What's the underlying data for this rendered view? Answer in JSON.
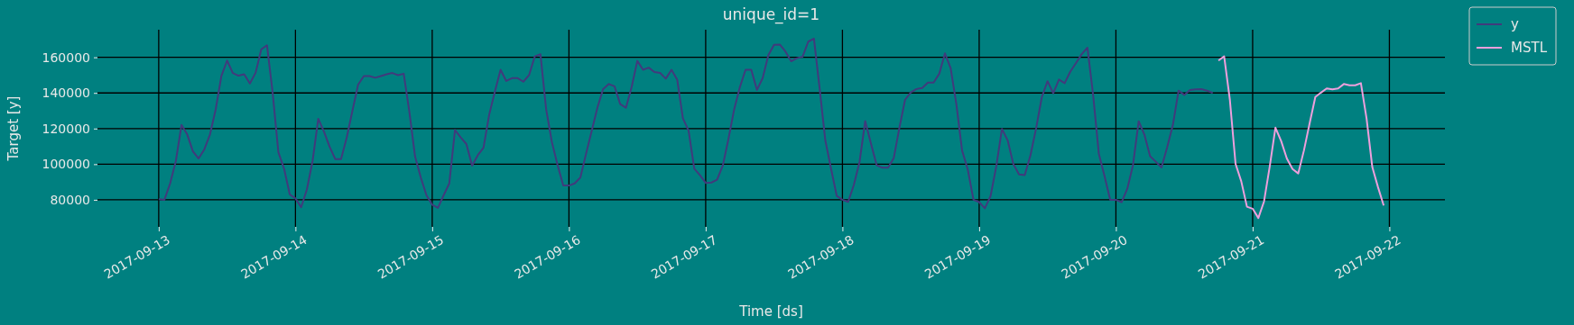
{
  "chart_data": {
    "type": "line",
    "title": "unique_id=1",
    "xlabel": "Time [ds]",
    "ylabel": "Target [y]",
    "xlim": [
      "2017-09-12T13:15",
      "2017-09-22T09:45"
    ],
    "xticks": [
      "2017-09-13",
      "2017-09-14",
      "2017-09-15",
      "2017-09-16",
      "2017-09-17",
      "2017-09-18",
      "2017-09-19",
      "2017-09-20",
      "2017-09-21",
      "2017-09-22"
    ],
    "ylim": [
      64800,
      175500
    ],
    "yticks": [
      80000,
      100000,
      120000,
      140000,
      160000
    ],
    "grid": true,
    "legend": "top right",
    "series": [
      {
        "name": "y",
        "color": "#413a7c",
        "x": [
          "2017-09-13T00:00",
          "2017-09-13T01:00",
          "2017-09-13T02:00",
          "2017-09-13T03:00",
          "2017-09-13T04:00",
          "2017-09-13T05:00",
          "2017-09-13T06:00",
          "2017-09-13T07:00",
          "2017-09-13T08:00",
          "2017-09-13T09:00",
          "2017-09-13T10:00",
          "2017-09-13T11:00",
          "2017-09-13T12:00",
          "2017-09-13T13:00",
          "2017-09-13T14:00",
          "2017-09-13T15:00",
          "2017-09-13T16:00",
          "2017-09-13T17:00",
          "2017-09-13T18:00",
          "2017-09-13T19:00",
          "2017-09-13T20:00",
          "2017-09-13T21:00",
          "2017-09-13T22:00",
          "2017-09-13T23:00",
          "2017-09-14T00:00",
          "2017-09-14T01:00",
          "2017-09-14T02:00",
          "2017-09-14T03:00",
          "2017-09-14T04:00",
          "2017-09-14T05:00",
          "2017-09-14T06:00",
          "2017-09-14T07:00",
          "2017-09-14T08:00",
          "2017-09-14T09:00",
          "2017-09-14T10:00",
          "2017-09-14T11:00",
          "2017-09-14T12:00",
          "2017-09-14T13:00",
          "2017-09-14T14:00",
          "2017-09-14T15:00",
          "2017-09-14T16:00",
          "2017-09-14T17:00",
          "2017-09-14T18:00",
          "2017-09-14T19:00",
          "2017-09-14T20:00",
          "2017-09-14T21:00",
          "2017-09-14T22:00",
          "2017-09-14T23:00",
          "2017-09-15T00:00",
          "2017-09-15T01:00",
          "2017-09-15T02:00",
          "2017-09-15T03:00",
          "2017-09-15T04:00",
          "2017-09-15T05:00",
          "2017-09-15T06:00",
          "2017-09-15T07:00",
          "2017-09-15T08:00",
          "2017-09-15T09:00",
          "2017-09-15T10:00",
          "2017-09-15T11:00",
          "2017-09-15T12:00",
          "2017-09-15T13:00",
          "2017-09-15T14:00",
          "2017-09-15T15:00",
          "2017-09-15T16:00",
          "2017-09-15T17:00",
          "2017-09-15T18:00",
          "2017-09-15T19:00",
          "2017-09-15T20:00",
          "2017-09-15T21:00",
          "2017-09-15T22:00",
          "2017-09-15T23:00",
          "2017-09-16T00:00",
          "2017-09-16T01:00",
          "2017-09-16T02:00",
          "2017-09-16T03:00",
          "2017-09-16T04:00",
          "2017-09-16T05:00",
          "2017-09-16T06:00",
          "2017-09-16T07:00",
          "2017-09-16T08:00",
          "2017-09-16T09:00",
          "2017-09-16T10:00",
          "2017-09-16T11:00",
          "2017-09-16T12:00",
          "2017-09-16T13:00",
          "2017-09-16T14:00",
          "2017-09-16T15:00",
          "2017-09-16T16:00",
          "2017-09-16T17:00",
          "2017-09-16T18:00",
          "2017-09-16T19:00",
          "2017-09-16T20:00",
          "2017-09-16T21:00",
          "2017-09-16T22:00",
          "2017-09-16T23:00",
          "2017-09-17T00:00",
          "2017-09-17T01:00",
          "2017-09-17T02:00",
          "2017-09-17T03:00",
          "2017-09-17T04:00",
          "2017-09-17T05:00",
          "2017-09-17T06:00",
          "2017-09-17T07:00",
          "2017-09-17T08:00",
          "2017-09-17T09:00",
          "2017-09-17T10:00",
          "2017-09-17T11:00",
          "2017-09-17T12:00",
          "2017-09-17T13:00",
          "2017-09-17T14:00",
          "2017-09-17T15:00",
          "2017-09-17T16:00",
          "2017-09-17T17:00",
          "2017-09-17T18:00",
          "2017-09-17T19:00",
          "2017-09-17T20:00",
          "2017-09-17T21:00",
          "2017-09-17T22:00",
          "2017-09-17T23:00",
          "2017-09-18T00:00",
          "2017-09-18T01:00",
          "2017-09-18T02:00",
          "2017-09-18T03:00",
          "2017-09-18T04:00",
          "2017-09-18T05:00",
          "2017-09-18T06:00",
          "2017-09-18T07:00",
          "2017-09-18T08:00",
          "2017-09-18T09:00",
          "2017-09-18T10:00",
          "2017-09-18T11:00",
          "2017-09-18T12:00",
          "2017-09-18T13:00",
          "2017-09-18T14:00",
          "2017-09-18T15:00",
          "2017-09-18T16:00",
          "2017-09-18T17:00",
          "2017-09-18T18:00",
          "2017-09-18T19:00",
          "2017-09-18T20:00",
          "2017-09-18T21:00",
          "2017-09-18T22:00",
          "2017-09-18T23:00",
          "2017-09-19T00:00",
          "2017-09-19T01:00",
          "2017-09-19T02:00",
          "2017-09-19T03:00",
          "2017-09-19T04:00",
          "2017-09-19T05:00",
          "2017-09-19T06:00",
          "2017-09-19T07:00",
          "2017-09-19T08:00",
          "2017-09-19T09:00",
          "2017-09-19T10:00",
          "2017-09-19T11:00",
          "2017-09-19T12:00",
          "2017-09-19T13:00",
          "2017-09-19T14:00",
          "2017-09-19T15:00",
          "2017-09-19T16:00",
          "2017-09-19T17:00",
          "2017-09-19T18:00",
          "2017-09-19T19:00",
          "2017-09-19T20:00",
          "2017-09-19T21:00",
          "2017-09-19T22:00",
          "2017-09-19T23:00",
          "2017-09-20T00:00",
          "2017-09-20T01:00",
          "2017-09-20T02:00",
          "2017-09-20T03:00",
          "2017-09-20T04:00",
          "2017-09-20T05:00",
          "2017-09-20T06:00",
          "2017-09-20T07:00",
          "2017-09-20T08:00",
          "2017-09-20T09:00",
          "2017-09-20T10:00",
          "2017-09-20T11:00",
          "2017-09-20T12:00",
          "2017-09-20T13:00",
          "2017-09-20T14:00",
          "2017-09-20T15:00",
          "2017-09-20T16:00",
          "2017-09-20T17:00"
        ],
        "values": [
          80300,
          80000,
          89200,
          101700,
          122000,
          116700,
          107200,
          103200,
          108300,
          116700,
          130800,
          149500,
          158200,
          151200,
          149700,
          150500,
          145300,
          151300,
          164500,
          166800,
          140000,
          106700,
          97500,
          83000,
          80800,
          75800,
          85800,
          101700,
          125500,
          118300,
          109700,
          102800,
          102800,
          115000,
          130000,
          144700,
          149500,
          149500,
          148500,
          149500,
          150500,
          151200,
          150000,
          150800,
          129200,
          104200,
          92500,
          82500,
          77200,
          75500,
          82500,
          89200,
          119200,
          115000,
          111300,
          99200,
          105000,
          109200,
          127800,
          140800,
          153000,
          146700,
          148300,
          148300,
          146300,
          150000,
          160500,
          161700,
          130800,
          112500,
          99500,
          88000,
          88000,
          89200,
          92500,
          105800,
          118800,
          131800,
          142200,
          145000,
          143700,
          133700,
          131700,
          143300,
          158000,
          153000,
          154200,
          151700,
          151200,
          148000,
          153000,
          147500,
          125800,
          118800,
          97500,
          93800,
          89500,
          89700,
          91300,
          99200,
          114200,
          130800,
          143300,
          153000,
          153000,
          141700,
          148300,
          161200,
          167000,
          167200,
          163300,
          157800,
          159500,
          160300,
          168800,
          170500,
          142500,
          113300,
          97500,
          82200,
          80000,
          78800,
          88300,
          101200,
          124200,
          111700,
          99500,
          98000,
          98000,
          103300,
          120500,
          136200,
          140300,
          142200,
          142800,
          145800,
          145800,
          150800,
          162200,
          153800,
          133600,
          107700,
          97000,
          80000,
          78700,
          75200,
          82100,
          98700,
          119800,
          113400,
          100000,
          94300,
          93900,
          105000,
          120200,
          137700,
          146600,
          139800,
          147500,
          145500,
          152000,
          156800,
          161800,
          165400,
          138900,
          105900,
          93400,
          80000,
          80000,
          78600,
          86200,
          99600,
          124100,
          116600,
          104500,
          101400,
          98200,
          109500,
          122000,
          141300,
          138900,
          141600,
          142000,
          142100,
          141300,
          140000
        ]
      },
      {
        "name": "MSTL",
        "color": "#ee9fdc",
        "x": [
          "2017-09-20T18:00",
          "2017-09-20T19:00",
          "2017-09-20T20:00",
          "2017-09-20T21:00",
          "2017-09-20T22:00",
          "2017-09-20T23:00",
          "2017-09-21T00:00",
          "2017-09-21T01:00",
          "2017-09-21T02:00",
          "2017-09-21T03:00",
          "2017-09-21T04:00",
          "2017-09-21T05:00",
          "2017-09-21T06:00",
          "2017-09-21T07:00",
          "2017-09-21T08:00",
          "2017-09-21T09:00",
          "2017-09-21T10:00",
          "2017-09-21T11:00",
          "2017-09-21T12:00",
          "2017-09-21T13:00",
          "2017-09-21T14:00",
          "2017-09-21T15:00",
          "2017-09-21T16:00",
          "2017-09-21T17:00",
          "2017-09-21T18:00",
          "2017-09-21T19:00",
          "2017-09-21T20:00",
          "2017-09-21T21:00",
          "2017-09-21T22:00",
          "2017-09-21T23:00"
        ],
        "values": [
          158200,
          160500,
          136200,
          100200,
          90400,
          76100,
          75000,
          69800,
          79100,
          98700,
          120500,
          113000,
          103200,
          97300,
          94800,
          107700,
          122900,
          137700,
          140200,
          142500,
          142000,
          142500,
          145000,
          144300,
          144300,
          145500,
          125500,
          98400,
          87100,
          76800
        ]
      }
    ]
  }
}
